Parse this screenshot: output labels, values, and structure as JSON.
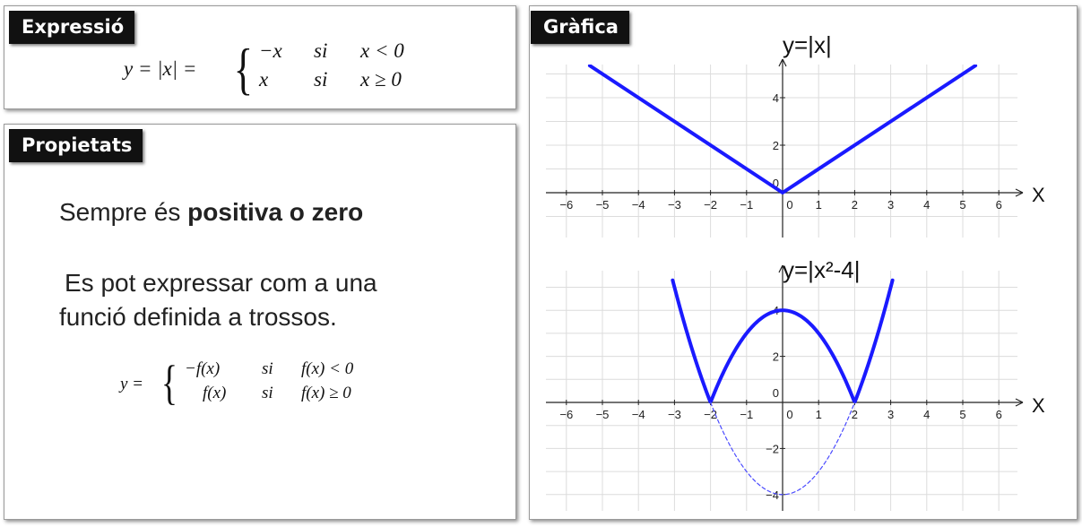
{
  "expression": {
    "tag": "Expressió",
    "lhs": "y = |x| =",
    "rows": [
      {
        "value": "−x",
        "cond": "si",
        "ineq": "x < 0"
      },
      {
        "value": "x",
        "cond": "si",
        "ineq": "x ≥ 0"
      }
    ]
  },
  "properties": {
    "tag": "Propietats",
    "line1_prefix": "Sempre és ",
    "line1_bold": "positiva o zero",
    "line2": "Es pot expressar com a una",
    "line3": "funció definida a trossos.",
    "formula_lhs": "y =",
    "formula_rows": [
      {
        "value": "−f(x)",
        "cond": "si",
        "ineq": "f(x) < 0"
      },
      {
        "value": "f(x)",
        "cond": "si",
        "ineq": "f(x) ≥ 0"
      }
    ]
  },
  "graph": {
    "tag": "Gràfica"
  },
  "chart_data": [
    {
      "type": "line",
      "title": "y=|x|",
      "xlabel": "x",
      "ylabel": "",
      "xlim": [
        -6.6,
        6.6
      ],
      "ylim": [
        -1.8,
        5.4
      ],
      "x_ticks": [
        -6,
        -5,
        -4,
        -3,
        -2,
        -1,
        0,
        1,
        2,
        3,
        4,
        5,
        6
      ],
      "y_ticks": [
        0,
        2,
        4
      ],
      "grid": true,
      "series": [
        {
          "style": "solid",
          "color": "#1a1aff",
          "x": [
            -5.35,
            0,
            5.35
          ],
          "y": [
            5.35,
            0,
            5.35
          ]
        }
      ]
    },
    {
      "type": "line",
      "title": "y=|x²-4|",
      "xlabel": "x",
      "ylabel": "",
      "xlim": [
        -6.6,
        6.6
      ],
      "ylim": [
        -4.4,
        5.6
      ],
      "x_ticks": [
        -6,
        -5,
        -4,
        -3,
        -2,
        -1,
        0,
        1,
        2,
        3,
        4,
        5,
        6
      ],
      "y_ticks": [
        -4,
        -2,
        0,
        2,
        4
      ],
      "grid": true,
      "series": [
        {
          "style": "solid",
          "color": "#1a1aff",
          "function": "|x^2-4|",
          "x": [
            -3.05,
            -2.5,
            -2,
            -1.5,
            -1,
            -0.5,
            0,
            0.5,
            1,
            1.5,
            2,
            2.5,
            3.05
          ],
          "y": [
            5.3,
            2.25,
            0,
            1.75,
            3,
            3.75,
            4,
            3.75,
            3,
            1.75,
            0,
            2.25,
            5.3
          ]
        },
        {
          "style": "dashed",
          "color": "#4a4aff",
          "function": "x^2-4",
          "x": [
            -2,
            -1.5,
            -1,
            -0.5,
            0,
            0.5,
            1,
            1.5,
            2
          ],
          "y": [
            0,
            -1.75,
            -3,
            -3.75,
            -4,
            -3.75,
            -3,
            -1.75,
            0
          ]
        }
      ]
    }
  ]
}
